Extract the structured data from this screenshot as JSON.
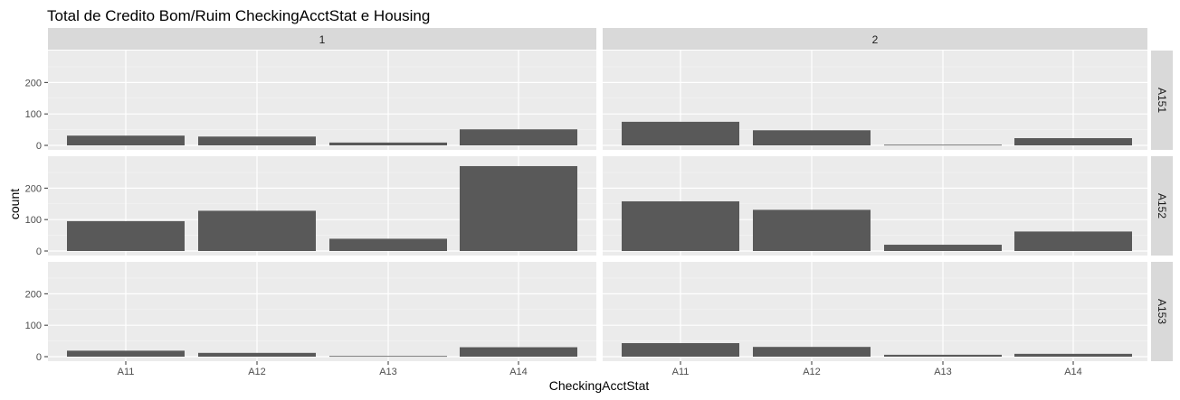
{
  "chart_data": {
    "type": "bar",
    "title": "Total de Credito Bom/Ruim CheckingAcctStat e Housing",
    "xlabel": "CheckingAcctStat",
    "ylabel": "count",
    "categories": [
      "A11",
      "A12",
      "A13",
      "A14"
    ],
    "columns": [
      "1",
      "2"
    ],
    "rows": [
      "A151",
      "A152",
      "A153"
    ],
    "ylim": [
      0,
      290
    ],
    "yticks": [
      0,
      100,
      200
    ],
    "grid": true,
    "bar_color": "#595959",
    "panel_background": "#ebebeb",
    "strip_background": "#d9d9d9",
    "panels": [
      {
        "col": "1",
        "row": "A151",
        "values": [
          31,
          28,
          9,
          51
        ]
      },
      {
        "col": "2",
        "row": "A151",
        "values": [
          75,
          48,
          2,
          23
        ]
      },
      {
        "col": "1",
        "row": "A152",
        "values": [
          95,
          128,
          39,
          270
        ]
      },
      {
        "col": "2",
        "row": "A152",
        "values": [
          158,
          131,
          20,
          62
        ]
      },
      {
        "col": "1",
        "row": "A153",
        "values": [
          19,
          12,
          2,
          30
        ]
      },
      {
        "col": "2",
        "row": "A153",
        "values": [
          43,
          31,
          6,
          9
        ]
      }
    ]
  }
}
